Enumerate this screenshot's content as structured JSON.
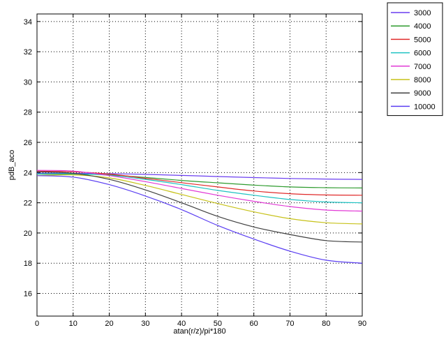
{
  "chart_data": {
    "type": "line",
    "title": "",
    "xlabel": "atan(r/z)/pi*180",
    "ylabel": "pdB_aco",
    "xlim": [
      0,
      90
    ],
    "ylim": [
      14.5,
      34.5
    ],
    "xticks": [
      0,
      10,
      20,
      30,
      40,
      50,
      60,
      70,
      80,
      90
    ],
    "yticks": [
      16,
      18,
      20,
      22,
      24,
      26,
      28,
      30,
      32,
      34
    ],
    "xtick_labels": [
      "0",
      "10",
      "20",
      "30",
      "40",
      "50",
      "60",
      "70",
      "80",
      "90"
    ],
    "ytick_labels": [
      "16",
      "18",
      "20",
      "22",
      "24",
      "26",
      "28",
      "30",
      "32",
      "34"
    ],
    "grid": true,
    "legend_position": "outside-top-right",
    "x": [
      0,
      10,
      20,
      30,
      40,
      50,
      60,
      70,
      80,
      90
    ],
    "series": [
      {
        "name": "3000",
        "color": "#6a3df0",
        "values": [
          23.95,
          23.95,
          23.93,
          23.88,
          23.81,
          23.74,
          23.67,
          23.61,
          23.57,
          23.55
        ]
      },
      {
        "name": "4000",
        "color": "#2e9b2e",
        "values": [
          23.9,
          23.9,
          23.85,
          23.68,
          23.48,
          23.32,
          23.17,
          23.05,
          23.0,
          22.98
        ]
      },
      {
        "name": "5000",
        "color": "#e02a2a",
        "values": [
          24.1,
          24.05,
          23.9,
          23.62,
          23.33,
          23.05,
          22.78,
          22.6,
          22.52,
          22.5
        ]
      },
      {
        "name": "6000",
        "color": "#1fc2c2",
        "values": [
          23.92,
          23.92,
          23.82,
          23.55,
          23.2,
          22.82,
          22.5,
          22.22,
          22.05,
          22.0
        ]
      },
      {
        "name": "7000",
        "color": "#e23ad6",
        "values": [
          24.15,
          24.1,
          23.8,
          23.4,
          22.95,
          22.5,
          22.1,
          21.75,
          21.52,
          21.45
        ]
      },
      {
        "name": "8000",
        "color": "#c7c21a",
        "values": [
          23.8,
          23.85,
          23.65,
          23.15,
          22.55,
          21.95,
          21.4,
          20.95,
          20.68,
          20.6
        ]
      },
      {
        "name": "9000",
        "color": "#404040",
        "values": [
          24.05,
          23.95,
          23.55,
          22.85,
          22.0,
          21.1,
          20.4,
          19.9,
          19.5,
          19.4
        ]
      },
      {
        "name": "10000",
        "color": "#5a3ef2",
        "values": [
          23.8,
          23.7,
          23.2,
          22.45,
          21.55,
          20.5,
          19.6,
          18.8,
          18.2,
          18.0
        ]
      }
    ]
  }
}
